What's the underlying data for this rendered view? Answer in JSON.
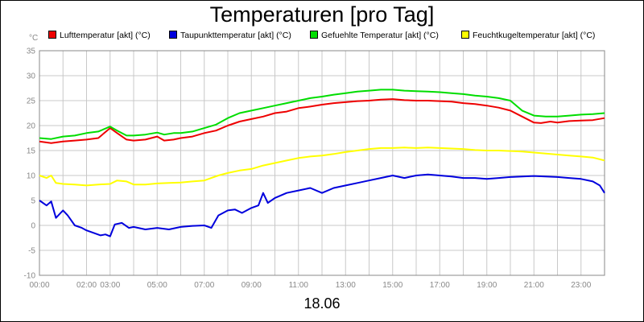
{
  "chart_data": {
    "type": "line",
    "title": "Temperaturen [pro Tag]",
    "unit_label": "°C",
    "x_footer": "18.06",
    "xlabel": "",
    "ylabel": "°C",
    "ylim": [
      -10,
      35
    ],
    "y_ticks": [
      35,
      30,
      25,
      20,
      15,
      10,
      5,
      0,
      -5,
      -10
    ],
    "xlim": [
      0,
      24
    ],
    "x_ticks": [
      {
        "label": "00:00",
        "hour": 0
      },
      {
        "label": "02:00",
        "hour": 2
      },
      {
        "label": "03:00",
        "hour": 3
      },
      {
        "label": "05:00",
        "hour": 5
      },
      {
        "label": "07:00",
        "hour": 7
      },
      {
        "label": "09:00",
        "hour": 9
      },
      {
        "label": "11:00",
        "hour": 11
      },
      {
        "label": "13:00",
        "hour": 13
      },
      {
        "label": "15:00",
        "hour": 15
      },
      {
        "label": "17:00",
        "hour": 17
      },
      {
        "label": "19:00",
        "hour": 19
      },
      {
        "label": "21:00",
        "hour": 21
      },
      {
        "label": "23:00",
        "hour": 23
      }
    ],
    "grid": true,
    "legend_position": "top",
    "series": [
      {
        "name": "Lufttemperatur [akt] (°C)",
        "color": "#ee0000",
        "points": [
          [
            0,
            16.8
          ],
          [
            0.5,
            16.5
          ],
          [
            1,
            16.8
          ],
          [
            1.5,
            17.0
          ],
          [
            2,
            17.2
          ],
          [
            2.5,
            17.5
          ],
          [
            3,
            19.5
          ],
          [
            3.3,
            18.5
          ],
          [
            3.7,
            17.2
          ],
          [
            4,
            17.0
          ],
          [
            4.5,
            17.2
          ],
          [
            5,
            17.8
          ],
          [
            5.3,
            17.0
          ],
          [
            5.7,
            17.2
          ],
          [
            6,
            17.5
          ],
          [
            6.5,
            17.8
          ],
          [
            7,
            18.5
          ],
          [
            7.5,
            19.0
          ],
          [
            8,
            20.0
          ],
          [
            8.5,
            20.8
          ],
          [
            9,
            21.3
          ],
          [
            9.5,
            21.8
          ],
          [
            10,
            22.5
          ],
          [
            10.5,
            22.8
          ],
          [
            11,
            23.5
          ],
          [
            11.5,
            23.8
          ],
          [
            12,
            24.2
          ],
          [
            12.5,
            24.5
          ],
          [
            13,
            24.7
          ],
          [
            13.5,
            24.9
          ],
          [
            14,
            25.0
          ],
          [
            14.5,
            25.2
          ],
          [
            15,
            25.3
          ],
          [
            15.5,
            25.1
          ],
          [
            16,
            25.0
          ],
          [
            16.5,
            25.0
          ],
          [
            17,
            24.9
          ],
          [
            17.5,
            24.8
          ],
          [
            18,
            24.5
          ],
          [
            18.5,
            24.3
          ],
          [
            19,
            24.0
          ],
          [
            19.5,
            23.6
          ],
          [
            20,
            23.0
          ],
          [
            20.5,
            21.8
          ],
          [
            21,
            20.6
          ],
          [
            21.3,
            20.5
          ],
          [
            21.7,
            20.8
          ],
          [
            22,
            20.6
          ],
          [
            22.5,
            20.9
          ],
          [
            23,
            21.0
          ],
          [
            23.5,
            21.1
          ],
          [
            24,
            21.5
          ]
        ]
      },
      {
        "name": "Taupunkttemperatur [akt] (°C)",
        "color": "#0000dd",
        "points": [
          [
            0,
            5.0
          ],
          [
            0.3,
            4.0
          ],
          [
            0.5,
            4.8
          ],
          [
            0.7,
            1.5
          ],
          [
            0.9,
            2.5
          ],
          [
            1,
            3.0
          ],
          [
            1.2,
            2.0
          ],
          [
            1.5,
            0
          ],
          [
            1.8,
            -0.5
          ],
          [
            2,
            -1.0
          ],
          [
            2.3,
            -1.5
          ],
          [
            2.6,
            -2.0
          ],
          [
            2.8,
            -1.8
          ],
          [
            3.0,
            -2.2
          ],
          [
            3.2,
            0.2
          ],
          [
            3.5,
            0.5
          ],
          [
            3.8,
            -0.5
          ],
          [
            4,
            -0.3
          ],
          [
            4.5,
            -0.8
          ],
          [
            5,
            -0.5
          ],
          [
            5.5,
            -0.8
          ],
          [
            6,
            -0.3
          ],
          [
            6.5,
            -0.1
          ],
          [
            7,
            0.0
          ],
          [
            7.3,
            -0.5
          ],
          [
            7.6,
            2.0
          ],
          [
            8,
            3.0
          ],
          [
            8.3,
            3.2
          ],
          [
            8.6,
            2.5
          ],
          [
            9,
            3.5
          ],
          [
            9.3,
            4.0
          ],
          [
            9.5,
            6.5
          ],
          [
            9.7,
            4.5
          ],
          [
            10,
            5.5
          ],
          [
            10.5,
            6.5
          ],
          [
            11,
            7.0
          ],
          [
            11.5,
            7.5
          ],
          [
            12,
            6.5
          ],
          [
            12.5,
            7.5
          ],
          [
            13,
            8.0
          ],
          [
            13.5,
            8.5
          ],
          [
            14,
            9.0
          ],
          [
            14.5,
            9.5
          ],
          [
            15,
            10.0
          ],
          [
            15.5,
            9.5
          ],
          [
            16,
            10.0
          ],
          [
            16.5,
            10.2
          ],
          [
            17,
            10.0
          ],
          [
            17.5,
            9.8
          ],
          [
            18,
            9.5
          ],
          [
            18.5,
            9.5
          ],
          [
            19,
            9.3
          ],
          [
            19.5,
            9.5
          ],
          [
            20,
            9.7
          ],
          [
            20.5,
            9.8
          ],
          [
            21,
            9.9
          ],
          [
            21.5,
            9.8
          ],
          [
            22,
            9.7
          ],
          [
            22.5,
            9.5
          ],
          [
            23,
            9.3
          ],
          [
            23.5,
            8.8
          ],
          [
            23.8,
            8.0
          ],
          [
            24,
            6.5
          ]
        ]
      },
      {
        "name": "Gefuehlte Temperatur [akt] (°C)",
        "color": "#00dd00",
        "points": [
          [
            0,
            17.5
          ],
          [
            0.5,
            17.3
          ],
          [
            1,
            17.8
          ],
          [
            1.5,
            18.0
          ],
          [
            2,
            18.5
          ],
          [
            2.5,
            18.8
          ],
          [
            3,
            19.8
          ],
          [
            3.3,
            19.0
          ],
          [
            3.7,
            18.0
          ],
          [
            4,
            18.0
          ],
          [
            4.5,
            18.2
          ],
          [
            5,
            18.6
          ],
          [
            5.3,
            18.2
          ],
          [
            5.7,
            18.5
          ],
          [
            6,
            18.5
          ],
          [
            6.5,
            18.8
          ],
          [
            7,
            19.5
          ],
          [
            7.5,
            20.2
          ],
          [
            8,
            21.5
          ],
          [
            8.5,
            22.5
          ],
          [
            9,
            23.0
          ],
          [
            9.5,
            23.5
          ],
          [
            10,
            24.0
          ],
          [
            10.5,
            24.5
          ],
          [
            11,
            25.0
          ],
          [
            11.5,
            25.5
          ],
          [
            12,
            25.8
          ],
          [
            12.5,
            26.2
          ],
          [
            13,
            26.5
          ],
          [
            13.5,
            26.8
          ],
          [
            14,
            27.0
          ],
          [
            14.5,
            27.2
          ],
          [
            15,
            27.2
          ],
          [
            15.5,
            27.0
          ],
          [
            16,
            26.9
          ],
          [
            16.5,
            26.8
          ],
          [
            17,
            26.7
          ],
          [
            17.5,
            26.5
          ],
          [
            18,
            26.3
          ],
          [
            18.5,
            26.0
          ],
          [
            19,
            25.8
          ],
          [
            19.5,
            25.5
          ],
          [
            20,
            25.0
          ],
          [
            20.5,
            23.0
          ],
          [
            21,
            22.0
          ],
          [
            21.5,
            21.8
          ],
          [
            22,
            21.8
          ],
          [
            22.5,
            22.0
          ],
          [
            23,
            22.2
          ],
          [
            23.5,
            22.3
          ],
          [
            24,
            22.5
          ]
        ]
      },
      {
        "name": "Feuchtkugeltemperatur [akt] (°C)",
        "color": "#ffff00",
        "points": [
          [
            0,
            10.0
          ],
          [
            0.3,
            9.5
          ],
          [
            0.5,
            10.0
          ],
          [
            0.7,
            8.5
          ],
          [
            1,
            8.3
          ],
          [
            1.5,
            8.2
          ],
          [
            2,
            8.0
          ],
          [
            2.5,
            8.2
          ],
          [
            3,
            8.3
          ],
          [
            3.3,
            9.0
          ],
          [
            3.7,
            8.8
          ],
          [
            4,
            8.2
          ],
          [
            4.5,
            8.2
          ],
          [
            5,
            8.4
          ],
          [
            5.5,
            8.5
          ],
          [
            6,
            8.6
          ],
          [
            6.5,
            8.8
          ],
          [
            7,
            9.0
          ],
          [
            7.3,
            9.5
          ],
          [
            7.6,
            10.0
          ],
          [
            8,
            10.5
          ],
          [
            8.5,
            11.0
          ],
          [
            9,
            11.3
          ],
          [
            9.5,
            12.0
          ],
          [
            10,
            12.5
          ],
          [
            10.5,
            13.0
          ],
          [
            11,
            13.5
          ],
          [
            11.5,
            13.8
          ],
          [
            12,
            14.0
          ],
          [
            12.5,
            14.3
          ],
          [
            13,
            14.7
          ],
          [
            13.5,
            15.0
          ],
          [
            14,
            15.3
          ],
          [
            14.5,
            15.5
          ],
          [
            15,
            15.5
          ],
          [
            15.5,
            15.6
          ],
          [
            16,
            15.5
          ],
          [
            16.5,
            15.6
          ],
          [
            17,
            15.5
          ],
          [
            17.5,
            15.4
          ],
          [
            18,
            15.3
          ],
          [
            18.5,
            15.1
          ],
          [
            19,
            15.0
          ],
          [
            19.5,
            15.0
          ],
          [
            20,
            14.9
          ],
          [
            20.5,
            14.8
          ],
          [
            21,
            14.6
          ],
          [
            21.5,
            14.4
          ],
          [
            22,
            14.2
          ],
          [
            22.5,
            14.0
          ],
          [
            23,
            13.8
          ],
          [
            23.5,
            13.6
          ],
          [
            24,
            13.0
          ]
        ]
      }
    ]
  }
}
